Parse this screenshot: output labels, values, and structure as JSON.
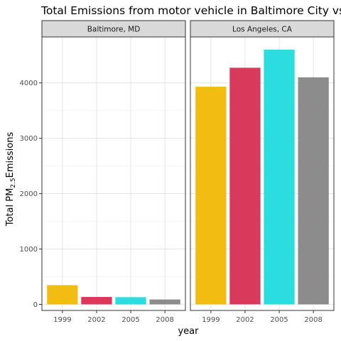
{
  "chart_data": {
    "type": "bar",
    "title": "Total Emissions from motor vehicle in Baltimore City vs.",
    "xlabel": "year",
    "ylabel_main": "Total PM",
    "ylabel_sub": "2.5",
    "ylabel_suffix": "Emissions",
    "categories": [
      "1999",
      "2002",
      "2005",
      "2008"
    ],
    "colors": [
      "#f2bc12",
      "#d93a5c",
      "#2cdde0",
      "#8c8c8c"
    ],
    "ylim": [
      -110,
      4830
    ],
    "yticks": [
      0,
      1000,
      2000,
      3000,
      4000
    ],
    "grid": true,
    "facets": [
      {
        "label": "Baltimore, MD",
        "values": [
          347,
          134,
          130,
          88
        ]
      },
      {
        "label": "Los Angeles, CA",
        "values": [
          3931,
          4274,
          4602,
          4101
        ]
      }
    ]
  }
}
